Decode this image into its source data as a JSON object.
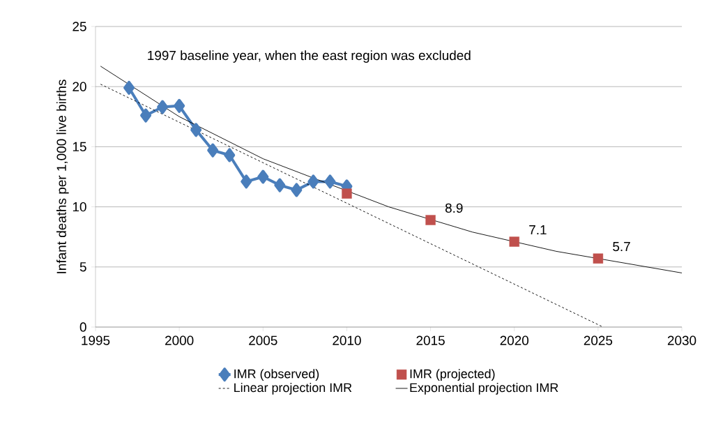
{
  "chart_data": {
    "type": "line",
    "ylabel": "Infant deaths per 1,000 live births",
    "xlim": [
      1995,
      2030
    ],
    "xticks": [
      1995,
      2000,
      2005,
      2010,
      2015,
      2020,
      2025,
      2030
    ],
    "ylim": [
      0,
      25
    ],
    "yticks": [
      0,
      5,
      10,
      15,
      20,
      25
    ],
    "grid": "y",
    "legend": "bottom",
    "annotations": [
      "1997 baseline year, when the east region was excluded"
    ],
    "series": [
      {
        "name": "IMR (observed)",
        "color": "#4a7ebb",
        "marker": "diamond",
        "line_style": "solid",
        "x": [
          1997,
          1998,
          1999,
          2000,
          2001,
          2002,
          2003,
          2004,
          2005,
          2006,
          2007,
          2008,
          2009,
          2010
        ],
        "values": [
          19.9,
          17.6,
          18.3,
          18.4,
          16.4,
          14.7,
          14.3,
          12.1,
          12.5,
          11.8,
          11.4,
          12.1,
          12.1,
          11.7
        ]
      },
      {
        "name": "IMR (projected)",
        "type": "scatter",
        "color": "#c0504d",
        "marker": "square",
        "x": [
          2010,
          2015,
          2020,
          2025
        ],
        "values": [
          11.1,
          8.9,
          7.1,
          5.7
        ],
        "value_labels": [
          null,
          "8.9",
          "7.1",
          "5.7"
        ]
      },
      {
        "name": "Linear projection IMR",
        "color": "#000000",
        "marker": "none",
        "line_style": "dashed",
        "x": [
          1995.3,
          2025.3
        ],
        "values": [
          20.2,
          0
        ]
      },
      {
        "name": "Exponential projection IMR",
        "color": "#000000",
        "marker": "none",
        "line_style": "solid",
        "x": [
          1995.3,
          2000,
          2005,
          2012.5,
          2017.5,
          2022.5,
          2030
        ],
        "values": [
          21.7,
          17.5,
          14.0,
          10.0,
          7.9,
          6.3,
          4.5
        ]
      }
    ]
  }
}
